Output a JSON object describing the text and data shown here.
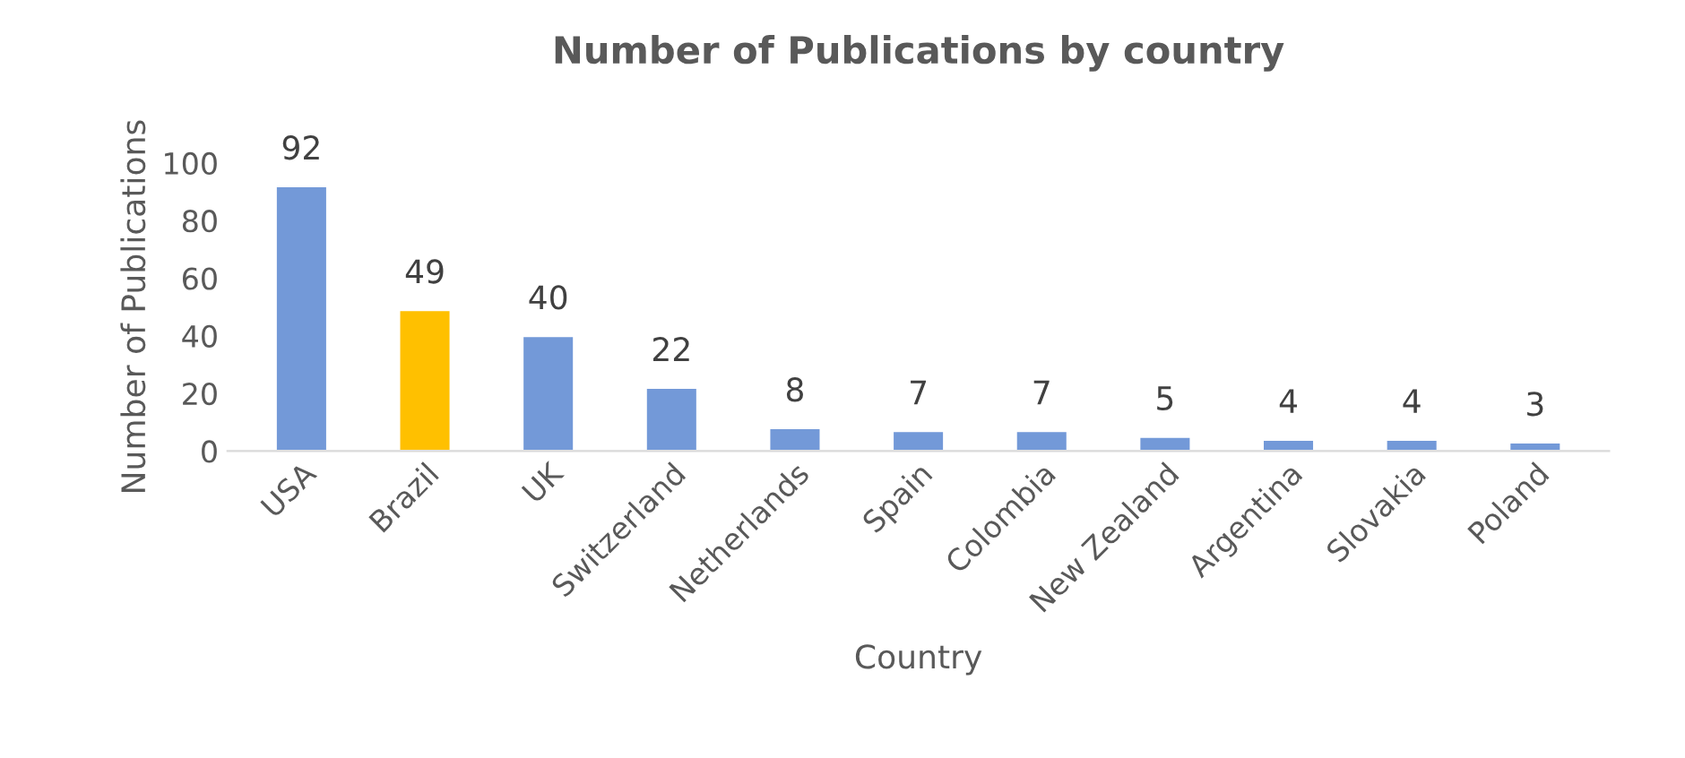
{
  "chart_data": {
    "type": "bar",
    "title": "Number of Publications by country",
    "xlabel": "Country",
    "ylabel": "Number of Publications",
    "categories": [
      "USA",
      "Brazil",
      "UK",
      "Switzerland",
      "Netherlands",
      "Spain",
      "Colombia",
      "New Zealand",
      "Argentina",
      "Slovakia",
      "Poland"
    ],
    "values": [
      92,
      49,
      40,
      22,
      8,
      7,
      7,
      5,
      4,
      4,
      3
    ],
    "colors": [
      "#7399d8",
      "#ffc000",
      "#7399d8",
      "#7399d8",
      "#7399d8",
      "#7399d8",
      "#7399d8",
      "#7399d8",
      "#7399d8",
      "#7399d8",
      "#7399d8"
    ],
    "ylim": [
      0,
      100
    ],
    "yticks": [
      0,
      20,
      40,
      60,
      80,
      100
    ],
    "data_labels": true,
    "grid": false,
    "legend": false
  }
}
